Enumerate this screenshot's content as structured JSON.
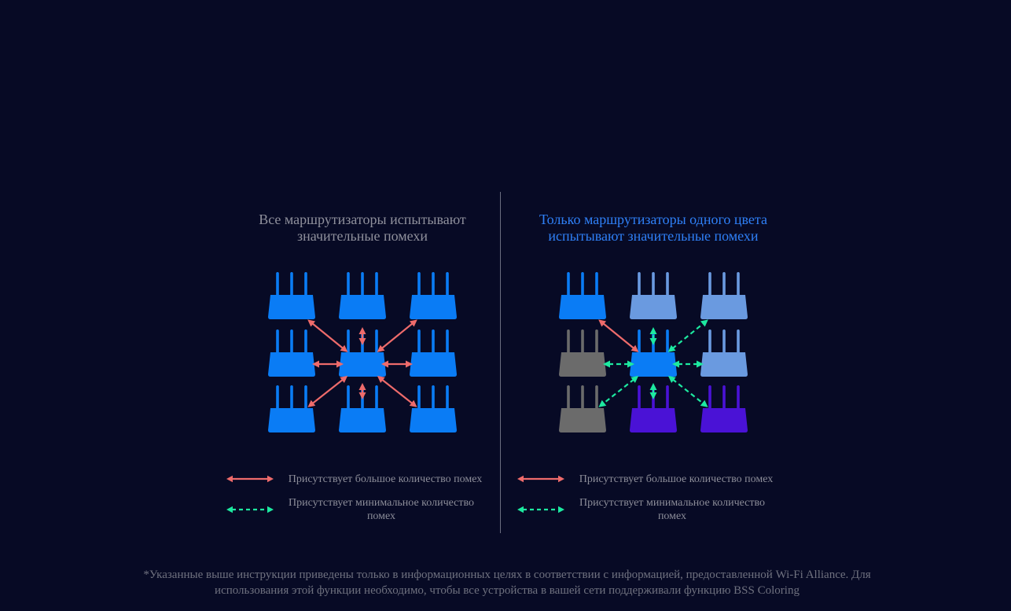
{
  "left_panel": {
    "title_line1": "Все маршрутизаторы испытывают",
    "title_line2": "значительные помехи"
  },
  "right_panel": {
    "title_line1": "Только маршрутизаторы одного цвета",
    "title_line2": "испытывают значительные помехи"
  },
  "legend": {
    "high_interference": "Присутствует большое количество помех",
    "low_interference": "Присутствует минимальное количество помех"
  },
  "footnote": {
    "line1": "*Указанные выше инструкции приведены только в информационных целях в соответствии с информацией, предоставленной Wi-Fi Alliance. Для",
    "line2": "использования этой функции необходимо, чтобы все устройства в вашей сети поддерживали функцию BSS Coloring"
  },
  "colors": {
    "background": "#070a25",
    "router_blue": "#0a7cf5",
    "router_light_blue": "#6a9ae0",
    "router_gray": "#6b6b6b",
    "router_purple": "#4a12d6",
    "arrow_high": "#ee6b6b",
    "arrow_low": "#1de9a0",
    "title_accent": "#2f80f7"
  },
  "diagrams": {
    "left": {
      "routers": [
        {
          "pos": "top-left",
          "color": "blue"
        },
        {
          "pos": "top-center",
          "color": "blue"
        },
        {
          "pos": "top-right",
          "color": "blue"
        },
        {
          "pos": "middle-left",
          "color": "blue"
        },
        {
          "pos": "center",
          "color": "blue"
        },
        {
          "pos": "middle-right",
          "color": "blue"
        },
        {
          "pos": "bottom-left",
          "color": "blue"
        },
        {
          "pos": "bottom-center",
          "color": "blue"
        },
        {
          "pos": "bottom-right",
          "color": "blue"
        }
      ],
      "links": [
        {
          "to": "top-left",
          "type": "high"
        },
        {
          "to": "top-center",
          "type": "high"
        },
        {
          "to": "top-right",
          "type": "high"
        },
        {
          "to": "middle-left",
          "type": "high"
        },
        {
          "to": "middle-right",
          "type": "high"
        },
        {
          "to": "bottom-left",
          "type": "high"
        },
        {
          "to": "bottom-center",
          "type": "high"
        },
        {
          "to": "bottom-right",
          "type": "high"
        }
      ]
    },
    "right": {
      "routers": [
        {
          "pos": "top-left",
          "color": "blue"
        },
        {
          "pos": "top-center",
          "color": "light_blue"
        },
        {
          "pos": "top-right",
          "color": "light_blue"
        },
        {
          "pos": "middle-left",
          "color": "gray"
        },
        {
          "pos": "center",
          "color": "blue"
        },
        {
          "pos": "middle-right",
          "color": "light_blue"
        },
        {
          "pos": "bottom-left",
          "color": "gray"
        },
        {
          "pos": "bottom-center",
          "color": "purple"
        },
        {
          "pos": "bottom-right",
          "color": "purple"
        }
      ],
      "links": [
        {
          "to": "top-left",
          "type": "high"
        },
        {
          "to": "top-center",
          "type": "low"
        },
        {
          "to": "top-right",
          "type": "low"
        },
        {
          "to": "middle-left",
          "type": "low"
        },
        {
          "to": "middle-right",
          "type": "low"
        },
        {
          "to": "bottom-left",
          "type": "low"
        },
        {
          "to": "bottom-center",
          "type": "low"
        },
        {
          "to": "bottom-right",
          "type": "low"
        }
      ]
    }
  }
}
